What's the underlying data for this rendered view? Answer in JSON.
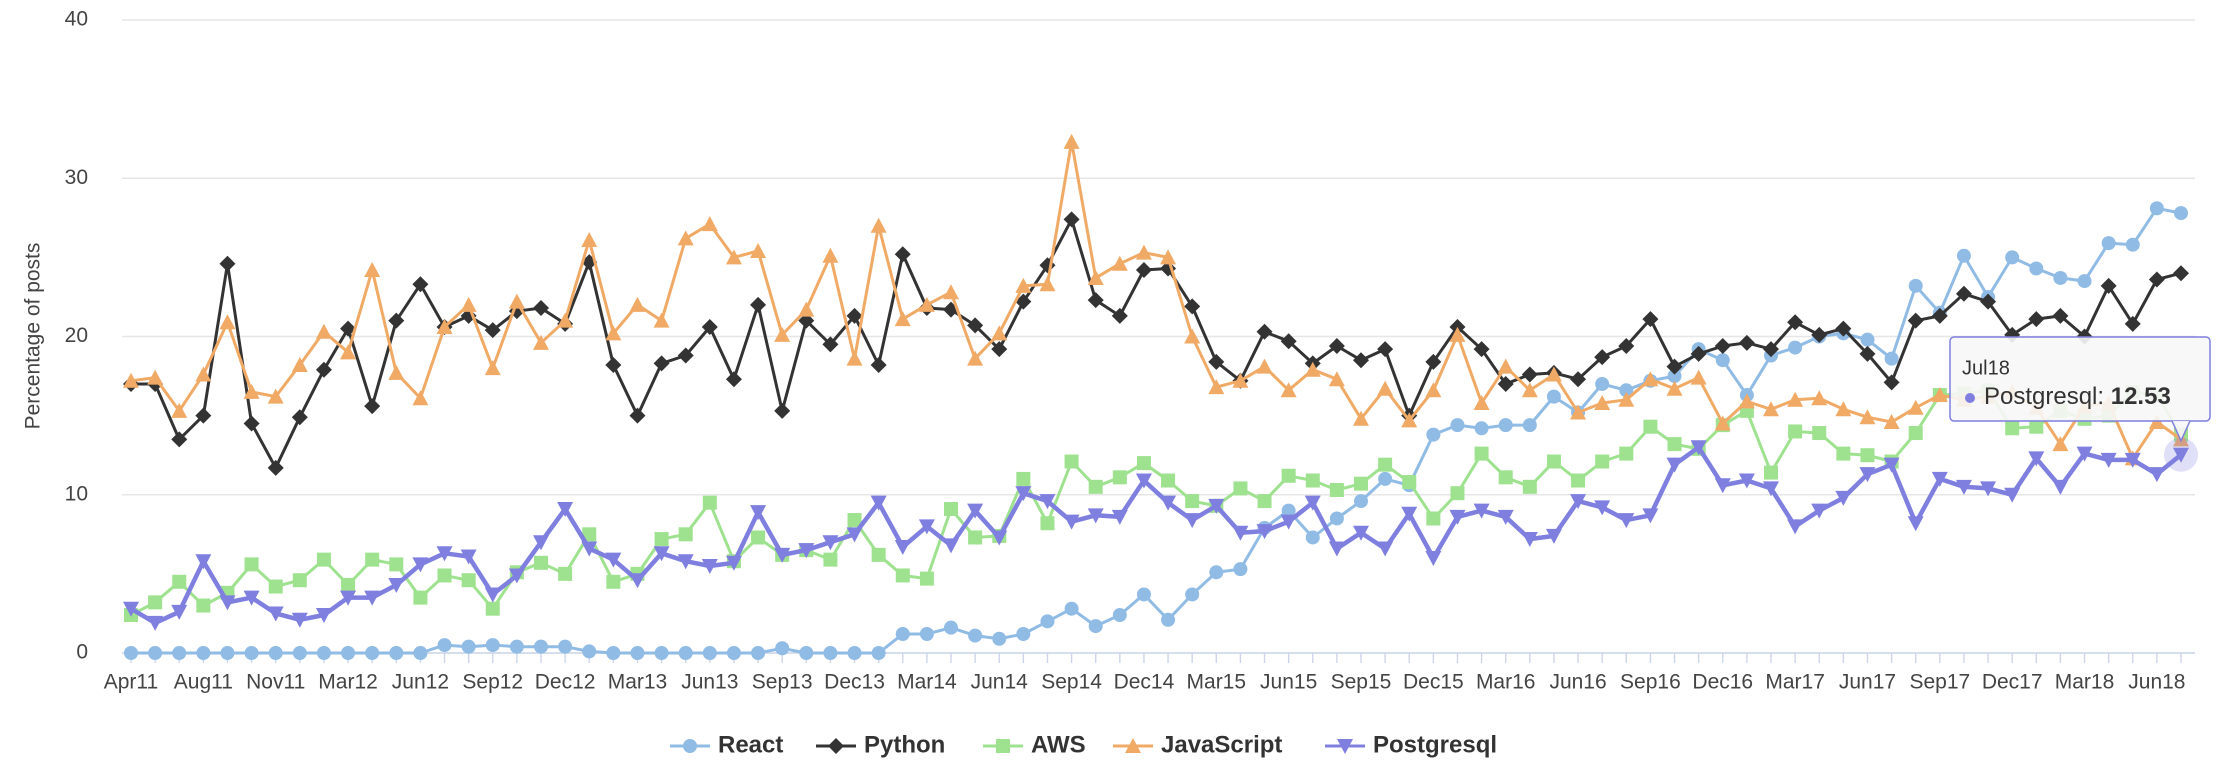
{
  "chart_data": {
    "type": "line",
    "y_label": "Percentage of posts",
    "categories": [
      "Apr11",
      null,
      null,
      "Aug11",
      null,
      null,
      "Nov11",
      null,
      null,
      "Mar12",
      null,
      null,
      "Jun12",
      null,
      null,
      "Sep12",
      null,
      null,
      "Dec12",
      null,
      null,
      "Mar13",
      null,
      null,
      "Jun13",
      null,
      null,
      "Sep13",
      null,
      null,
      "Dec13",
      null,
      null,
      "Mar14",
      null,
      null,
      "Jun14",
      null,
      null,
      "Sep14",
      null,
      null,
      "Dec14",
      null,
      null,
      "Mar15",
      null,
      null,
      "Jun15",
      null,
      null,
      "Sep15",
      null,
      null,
      "Dec15",
      null,
      null,
      "Mar16",
      null,
      null,
      "Jun16",
      null,
      null,
      "Sep16",
      null,
      null,
      "Dec16",
      null,
      null,
      "Mar17",
      null,
      null,
      "Jun17",
      null,
      null,
      "Sep17",
      null,
      null,
      "Dec17",
      null,
      null,
      "Mar18",
      null,
      null,
      "Jun18",
      null
    ],
    "ylim": [
      0,
      40
    ],
    "yticks": [
      0,
      10,
      20,
      30,
      40
    ],
    "grid": true,
    "legend": "bottom",
    "series": [
      {
        "name": "React",
        "color": "#8fbbe5",
        "marker": "circle",
        "values": [
          0,
          0,
          0,
          0,
          0,
          0,
          0,
          0,
          0,
          0,
          0,
          0,
          0,
          0.5,
          0.4,
          0.5,
          0.4,
          0.4,
          0.4,
          0.1,
          0,
          0,
          0,
          0,
          0,
          0,
          0,
          0.3,
          0,
          0,
          0,
          0,
          1.2,
          1.2,
          1.6,
          1.1,
          0.9,
          1.2,
          2.0,
          2.8,
          1.7,
          2.4,
          3.7,
          2.1,
          3.7,
          5.1,
          5.3,
          7.9,
          9.0,
          7.3,
          8.5,
          9.6,
          11,
          10.6,
          13.8,
          14.4,
          14.2,
          14.4,
          14.4,
          16.2,
          15.2,
          17,
          16.6,
          17.2,
          17.5,
          19.2,
          18.5,
          16.3,
          18.8,
          19.3,
          20,
          20.2,
          19.8,
          18.6,
          23.2,
          21.5,
          25.1,
          22.5,
          25,
          24.3,
          23.7,
          23.5,
          25.9,
          25.8,
          28.1,
          27.8
        ]
      },
      {
        "name": "Python",
        "color": "#333333",
        "marker": "diamond",
        "values": [
          17,
          17,
          13.5,
          15,
          24.6,
          14.5,
          11.7,
          14.9,
          17.9,
          20.5,
          15.6,
          21,
          23.3,
          20.6,
          21.3,
          20.4,
          21.6,
          21.8,
          20.8,
          24.7,
          18.2,
          15,
          18.3,
          18.8,
          20.6,
          17.3,
          22,
          15.3,
          21,
          19.5,
          21.3,
          18.2,
          25.2,
          21.8,
          21.7,
          20.7,
          19.2,
          22.2,
          24.5,
          27.4,
          22.3,
          21.3,
          24.2,
          24.3,
          21.9,
          18.4,
          17.2,
          20.3,
          19.7,
          18.3,
          19.4,
          18.5,
          19.2,
          15,
          18.4,
          20.6,
          19.2,
          17,
          17.6,
          17.7,
          17.3,
          18.7,
          19.4,
          21.1,
          18.1,
          18.9,
          19.4,
          19.6,
          19.2,
          20.9,
          20.1,
          20.5,
          18.9,
          17.1,
          21,
          21.3,
          22.7,
          22.2,
          20.1,
          21.1,
          21.3,
          20,
          23.2,
          20.8,
          23.6,
          24
        ]
      },
      {
        "name": "AWS",
        "color": "#9ee28f",
        "marker": "square",
        "values": [
          2.4,
          3.2,
          4.5,
          3,
          3.8,
          5.6,
          4.2,
          4.6,
          5.9,
          4.3,
          5.9,
          5.6,
          3.5,
          4.9,
          4.6,
          2.8,
          5.1,
          5.7,
          5,
          7.5,
          4.5,
          5,
          7.2,
          7.5,
          9.5,
          5.8,
          7.3,
          6.2,
          6.5,
          5.9,
          8.4,
          6.2,
          4.9,
          4.7,
          9.1,
          7.3,
          7.4,
          11,
          8.2,
          12.1,
          10.5,
          11.1,
          12,
          10.9,
          9.6,
          9.3,
          10.4,
          9.6,
          11.2,
          10.9,
          10.3,
          10.7,
          11.9,
          10.8,
          8.5,
          10.1,
          12.6,
          11.1,
          10.5,
          12.1,
          10.9,
          12.1,
          12.6,
          14.3,
          13.2,
          12.9,
          14.4,
          15.3,
          11.4,
          14,
          13.9,
          12.6,
          12.5,
          12.1,
          13.9,
          16.3,
          16.4,
          16.6,
          14.2,
          14.3,
          15.3,
          14.8,
          15,
          16.5,
          16.3,
          13.8
        ]
      },
      {
        "name": "JavaScript",
        "color": "#f0aa66",
        "marker": "triangle",
        "values": [
          17.2,
          17.4,
          15.3,
          17.6,
          20.9,
          16.5,
          16.2,
          18.2,
          20.3,
          19,
          24.2,
          17.7,
          16.1,
          20.6,
          22,
          18,
          22.2,
          19.6,
          21,
          26.1,
          20.2,
          22,
          21,
          26.2,
          27.1,
          25,
          25.4,
          20.1,
          21.7,
          25.1,
          18.6,
          27,
          21.1,
          22,
          22.8,
          18.6,
          20.2,
          23.2,
          23.3,
          32.3,
          23.7,
          24.6,
          25.3,
          25,
          20,
          16.8,
          17.2,
          18.1,
          16.6,
          17.9,
          17.3,
          14.8,
          16.7,
          14.7,
          16.6,
          20.1,
          15.8,
          18.1,
          16.6,
          17.6,
          15.2,
          15.8,
          16,
          17.3,
          16.7,
          17.4,
          14.5,
          15.9,
          15.4,
          16,
          16.1,
          15.4,
          14.9,
          14.6,
          15.5,
          16.3,
          16,
          16.2,
          16.5,
          15.5,
          13.2,
          15.6,
          15.8,
          12.3,
          14.6,
          13.5
        ]
      },
      {
        "name": "Postgresql",
        "color": "#7f7fe0",
        "marker": "triangle-down",
        "values": [
          2.8,
          1.9,
          2.6,
          5.8,
          3.2,
          3.5,
          2.5,
          2.1,
          2.4,
          3.5,
          3.5,
          4.3,
          5.6,
          6.3,
          6.1,
          3.7,
          4.9,
          7,
          9.1,
          6.6,
          5.9,
          4.6,
          6.3,
          5.8,
          5.5,
          5.7,
          8.9,
          6.2,
          6.5,
          7,
          7.5,
          9.5,
          6.7,
          8,
          6.8,
          9,
          7.3,
          10.1,
          9.6,
          8.3,
          8.7,
          8.6,
          10.9,
          9.5,
          8.4,
          9.3,
          7.6,
          7.7,
          8.3,
          9.5,
          6.6,
          7.6,
          6.6,
          8.8,
          6,
          8.6,
          9,
          8.6,
          7.2,
          7.4,
          9.6,
          9.2,
          8.4,
          8.7,
          11.9,
          13,
          10.6,
          10.9,
          10.4,
          8,
          9,
          9.8,
          11.3,
          11.9,
          8.2,
          11,
          10.5,
          10.4,
          10,
          12.3,
          10.5,
          12.6,
          12.2,
          12.2,
          11.3,
          12.53
        ]
      }
    ],
    "tooltip": {
      "category": "Jul18",
      "series": 4,
      "index": 85
    }
  }
}
